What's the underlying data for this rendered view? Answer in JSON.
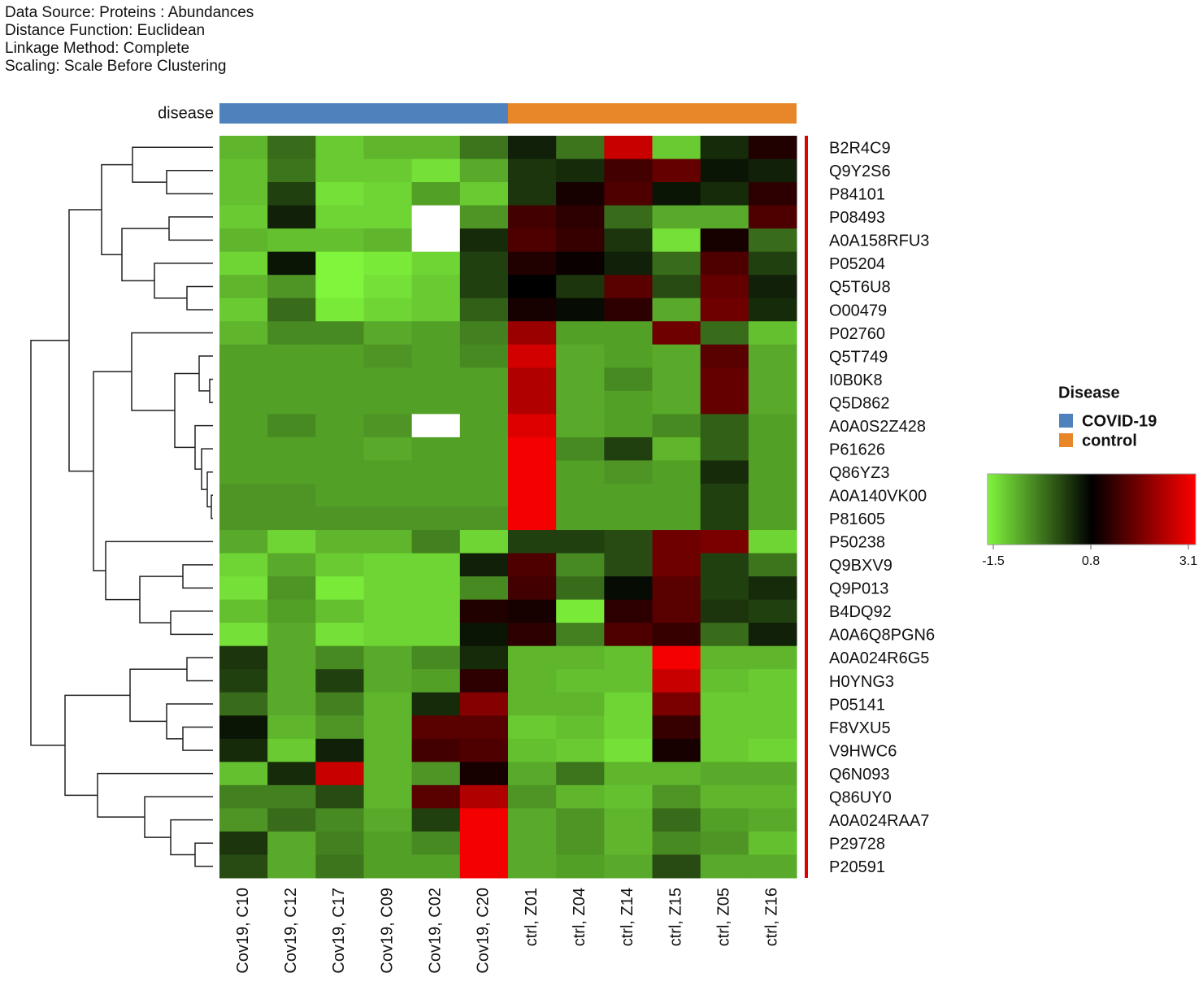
{
  "chart_data": {
    "type": "heatmap",
    "header": [
      "Data Source: Proteins : Abundances",
      "Distance Function: Euclidean",
      "Linkage Method: Complete",
      "Scaling: Scale Before Clustering"
    ],
    "rows": [
      "B2R4C9",
      "Q9Y2S6",
      "P84101",
      "P08493",
      "A0A158RFU3",
      "P05204",
      "Q5T6U8",
      "O00479",
      "P02760",
      "Q5T749",
      "I0B0K8",
      "Q5D862",
      "A0A0S2Z428",
      "P61626",
      "Q86YZ3",
      "A0A140VK00",
      "P81605",
      "P50238",
      "Q9BXV9",
      "Q9P013",
      "B4DQ92",
      "A0A6Q8PGN6",
      "A0A024R6G5",
      "H0YNG3",
      "P05141",
      "F8VXU5",
      "V9HWC6",
      "Q6N093",
      "Q86UY0",
      "A0A024RAA7",
      "P29728",
      "P20591"
    ],
    "columns": [
      "Cov19, C10",
      "Cov19, C12",
      "Cov19, C17",
      "Cov19, C09",
      "Cov19, C02",
      "Cov19, C20",
      "ctrl, Z01",
      "ctrl, Z04",
      "ctrl, Z14",
      "ctrl, Z15",
      "ctrl, Z05",
      "ctrl, Z16"
    ],
    "values": [
      [
        -0.9,
        -0.2,
        -1.1,
        -0.9,
        -0.9,
        -0.3,
        0.5,
        -0.3,
        2.6,
        -1.1,
        0.4,
        1.1
      ],
      [
        -1.0,
        -0.3,
        -1.1,
        -1.1,
        -1.3,
        -0.8,
        0.3,
        0.4,
        1.4,
        1.7,
        0.6,
        0.5
      ],
      [
        -1.0,
        0.2,
        -1.3,
        -1.2,
        -0.7,
        -1.1,
        0.3,
        1.0,
        1.5,
        0.6,
        0.4,
        1.2
      ],
      [
        -1.1,
        0.5,
        -1.2,
        -1.2,
        null,
        -0.6,
        1.4,
        1.2,
        -0.2,
        -0.8,
        -0.8,
        1.5
      ],
      [
        -0.9,
        -1.0,
        -1.0,
        -0.9,
        null,
        0.4,
        1.5,
        1.3,
        0.3,
        -1.3,
        1.0,
        -0.2
      ],
      [
        -1.2,
        0.6,
        -1.5,
        -1.4,
        -1.2,
        0.2,
        1.1,
        0.9,
        0.5,
        -0.2,
        1.5,
        0.2
      ],
      [
        -0.9,
        -0.6,
        -1.5,
        -1.3,
        -1.1,
        0.2,
        0.8,
        0.3,
        1.6,
        0.1,
        1.7,
        0.5
      ],
      [
        -1.1,
        -0.2,
        -1.4,
        -1.2,
        -1.1,
        -0.1,
        1.0,
        0.7,
        1.2,
        -0.8,
        1.8,
        0.4
      ],
      [
        -0.9,
        -0.5,
        -0.5,
        -0.8,
        -0.7,
        -0.4,
        2.2,
        -0.7,
        -0.7,
        1.8,
        -0.2,
        -1.0
      ],
      [
        -0.7,
        -0.7,
        -0.7,
        -0.6,
        -0.7,
        -0.5,
        2.7,
        -0.8,
        -0.7,
        -0.8,
        1.6,
        -0.8
      ],
      [
        -0.7,
        -0.7,
        -0.7,
        -0.7,
        -0.7,
        -0.7,
        2.4,
        -0.8,
        -0.5,
        -0.8,
        1.7,
        -0.8
      ],
      [
        -0.7,
        -0.7,
        -0.7,
        -0.7,
        -0.7,
        -0.7,
        2.4,
        -0.8,
        -0.7,
        -0.8,
        1.7,
        -0.8
      ],
      [
        -0.7,
        -0.5,
        -0.7,
        -0.6,
        null,
        -0.7,
        2.8,
        -0.8,
        -0.7,
        -0.5,
        -0.1,
        -0.7
      ],
      [
        -0.7,
        -0.7,
        -0.7,
        -0.8,
        -0.7,
        -0.7,
        3.0,
        -0.5,
        0.2,
        -0.9,
        -0.1,
        -0.7
      ],
      [
        -0.7,
        -0.7,
        -0.7,
        -0.7,
        -0.7,
        -0.7,
        3.0,
        -0.7,
        -0.6,
        -0.7,
        0.4,
        -0.7
      ],
      [
        -0.6,
        -0.6,
        -0.7,
        -0.7,
        -0.7,
        -0.7,
        3.0,
        -0.7,
        -0.7,
        -0.7,
        0.2,
        -0.7
      ],
      [
        -0.6,
        -0.6,
        -0.6,
        -0.6,
        -0.6,
        -0.6,
        3.0,
        -0.7,
        -0.7,
        -0.7,
        0.2,
        -0.7
      ],
      [
        -0.8,
        -1.2,
        -0.9,
        -0.9,
        -0.4,
        -1.2,
        0.2,
        0.2,
        0.1,
        1.8,
        1.9,
        -1.2
      ],
      [
        -1.2,
        -0.8,
        -1.1,
        -1.2,
        -1.2,
        0.5,
        1.5,
        -0.5,
        0.1,
        1.8,
        0.2,
        -0.3
      ],
      [
        -1.3,
        -0.6,
        -1.4,
        -1.2,
        -1.2,
        -0.5,
        1.4,
        -0.2,
        0.7,
        1.6,
        0.2,
        0.4
      ],
      [
        -1.0,
        -0.7,
        -1.0,
        -1.2,
        -1.2,
        1.1,
        1.0,
        -1.4,
        1.2,
        1.6,
        0.3,
        0.2
      ],
      [
        -1.3,
        -0.8,
        -1.3,
        -1.2,
        -1.2,
        0.6,
        1.2,
        -0.4,
        1.5,
        1.3,
        -0.2,
        0.5
      ],
      [
        0.3,
        -0.8,
        -0.5,
        -0.8,
        -0.5,
        0.4,
        -0.9,
        -0.9,
        -1.0,
        3.0,
        -0.9,
        -0.9
      ],
      [
        0.2,
        -0.8,
        0.2,
        -0.8,
        -0.7,
        1.2,
        -0.9,
        -1.0,
        -1.0,
        2.6,
        -1.0,
        -1.1
      ],
      [
        -0.2,
        -0.8,
        -0.4,
        -0.9,
        0.4,
        2.0,
        -0.9,
        -0.9,
        -1.2,
        1.9,
        -1.1,
        -1.1
      ],
      [
        0.6,
        -0.9,
        -0.6,
        -0.9,
        1.6,
        1.6,
        -1.1,
        -1.0,
        -1.2,
        1.3,
        -1.1,
        -1.1
      ],
      [
        0.4,
        -1.1,
        0.5,
        -0.9,
        1.4,
        1.5,
        -1.0,
        -1.1,
        -1.3,
        1.0,
        -1.1,
        -1.2
      ],
      [
        -1.0,
        0.4,
        2.6,
        -0.9,
        -0.6,
        1.0,
        -0.8,
        -0.3,
        -0.9,
        -0.9,
        -0.8,
        -0.8
      ],
      [
        -0.4,
        -0.4,
        0.1,
        -0.9,
        1.6,
        2.4,
        -0.6,
        -0.9,
        -1.0,
        -0.6,
        -0.9,
        -0.9
      ],
      [
        -0.6,
        -0.2,
        -0.5,
        -0.8,
        0.2,
        3.0,
        -0.8,
        -0.6,
        -0.9,
        -0.2,
        -0.7,
        -0.8
      ],
      [
        0.3,
        -0.8,
        -0.4,
        -0.7,
        -0.5,
        3.0,
        -0.8,
        -0.6,
        -0.9,
        -0.5,
        -0.6,
        -1.0
      ],
      [
        0.1,
        -0.8,
        -0.3,
        -0.7,
        -0.7,
        3.0,
        -0.8,
        -0.7,
        -0.8,
        0.1,
        -0.8,
        -0.8
      ]
    ],
    "annotation_label": "disease",
    "legend_title": "Disease",
    "groups": [
      {
        "name": "COVID-19",
        "color": "#4f81bd",
        "count": 6
      },
      {
        "name": "control",
        "color": "#e8862a",
        "count": 6
      }
    ],
    "colorscale": {
      "stops": [
        {
          "value": -1.5,
          "color": "#80f53c"
        },
        {
          "value": 0.8,
          "color": "#000000"
        },
        {
          "value": 3.1,
          "color": "#ff0000"
        }
      ],
      "ticks": [
        -1.5,
        0.8,
        3.1
      ]
    }
  }
}
